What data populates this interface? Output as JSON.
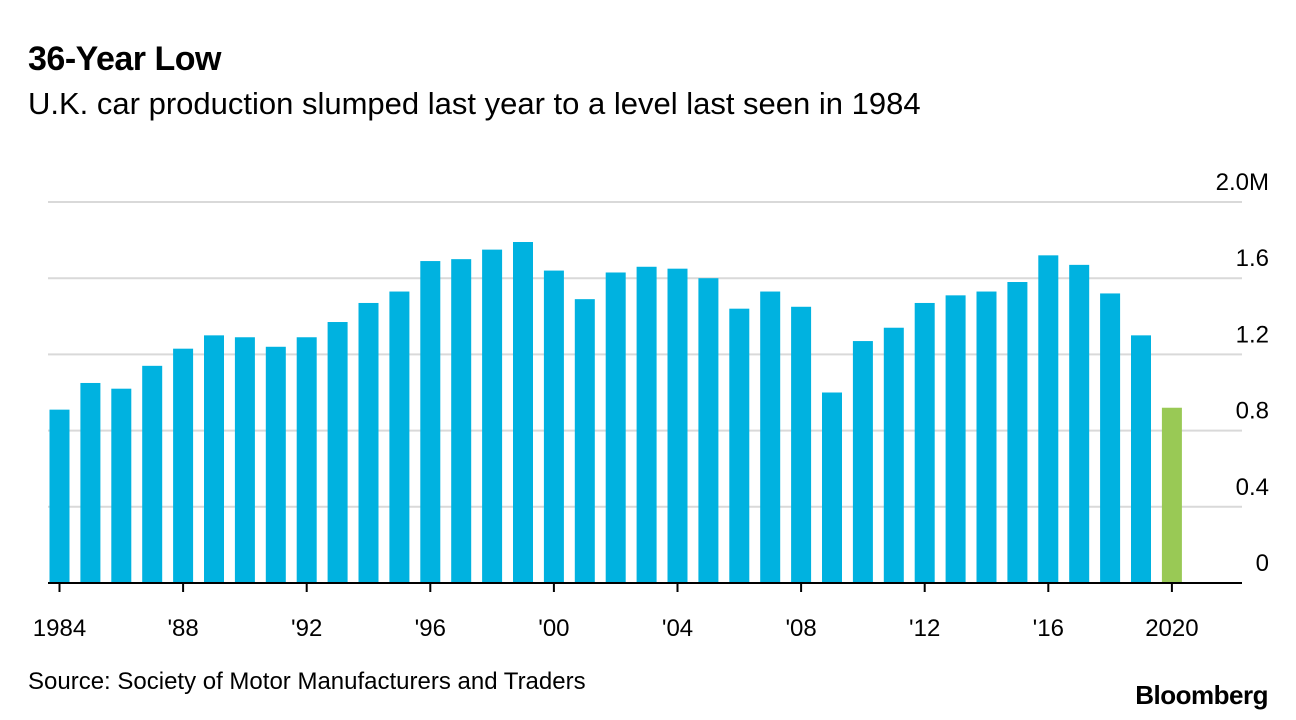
{
  "header": {
    "title": "36-Year Low",
    "subtitle": "U.K. car production slumped last year to a level last seen in 1984"
  },
  "footer": {
    "source": "Source: Society of Motor Manufacturers and Traders",
    "brand": "Bloomberg"
  },
  "colors": {
    "bar": "#00b2e0",
    "highlight": "#99c955",
    "grid": "#d9d9d9",
    "axis": "#000000"
  },
  "chart_data": {
    "type": "bar",
    "title": "36-Year Low",
    "subtitle": "U.K. car production slumped last year to a level last seen in 1984",
    "xlabel": "",
    "ylabel": "",
    "unit": "M",
    "ylim": [
      0,
      2.0
    ],
    "y_ticks": [
      {
        "value": 0,
        "label": "0"
      },
      {
        "value": 0.4,
        "label": "0.4"
      },
      {
        "value": 0.8,
        "label": "0.8"
      },
      {
        "value": 1.2,
        "label": "1.2"
      },
      {
        "value": 1.6,
        "label": "1.6"
      },
      {
        "value": 2.0,
        "label": "2.0M"
      }
    ],
    "x_ticks": [
      {
        "year": 1984,
        "label": "1984"
      },
      {
        "year": 1988,
        "label": "'88"
      },
      {
        "year": 1992,
        "label": "'92"
      },
      {
        "year": 1996,
        "label": "'96"
      },
      {
        "year": 2000,
        "label": "'00"
      },
      {
        "year": 2004,
        "label": "'04"
      },
      {
        "year": 2008,
        "label": "'08"
      },
      {
        "year": 2012,
        "label": "'12"
      },
      {
        "year": 2016,
        "label": "'16"
      },
      {
        "year": 2020,
        "label": "2020"
      }
    ],
    "highlight_year": 2020,
    "years": [
      1984,
      1985,
      1986,
      1987,
      1988,
      1989,
      1990,
      1991,
      1992,
      1993,
      1994,
      1995,
      1996,
      1997,
      1998,
      1999,
      2000,
      2001,
      2002,
      2003,
      2004,
      2005,
      2006,
      2007,
      2008,
      2009,
      2010,
      2011,
      2012,
      2013,
      2014,
      2015,
      2016,
      2017,
      2018,
      2019,
      2020
    ],
    "values": [
      0.91,
      1.05,
      1.02,
      1.14,
      1.23,
      1.3,
      1.29,
      1.24,
      1.29,
      1.37,
      1.47,
      1.53,
      1.69,
      1.7,
      1.75,
      1.79,
      1.64,
      1.49,
      1.63,
      1.66,
      1.65,
      1.6,
      1.44,
      1.53,
      1.45,
      1.0,
      1.27,
      1.34,
      1.47,
      1.51,
      1.53,
      1.58,
      1.72,
      1.67,
      1.52,
      1.3,
      0.92
    ]
  }
}
